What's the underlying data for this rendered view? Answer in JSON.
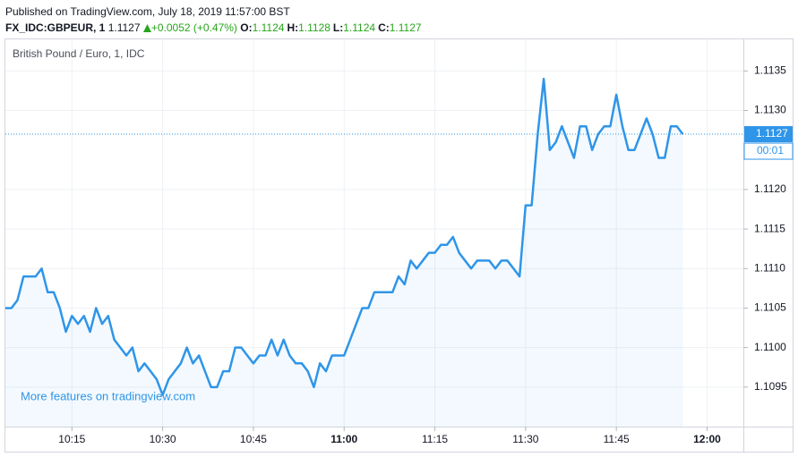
{
  "header": {
    "published": "Published on TradingView.com, July 18, 2019 11:57:00 BST",
    "symbol": "FX_IDC:GBPEUR, 1",
    "last": 1.1127,
    "change": "+0.0052 (+0.47%)",
    "ohlc": [
      {
        "label": "O:",
        "value": 1.1124
      },
      {
        "label": "H:",
        "value": 1.1128
      },
      {
        "label": "L:",
        "value": 1.1124
      },
      {
        "label": "C:",
        "value": 1.1127
      }
    ]
  },
  "chart_data": {
    "type": "line",
    "title": "British Pound / Euro, 1, IDC",
    "color": "#2f95e8",
    "watermark": "More features on tradingview.com",
    "countdown": "00:01",
    "grid": true,
    "x": [
      "10:04",
      "10:05",
      "10:06",
      "10:07",
      "10:08",
      "10:09",
      "10:10",
      "10:11",
      "10:12",
      "10:13",
      "10:14",
      "10:15",
      "10:16",
      "10:17",
      "10:18",
      "10:19",
      "10:20",
      "10:21",
      "10:22",
      "10:23",
      "10:24",
      "10:25",
      "10:26",
      "10:27",
      "10:28",
      "10:29",
      "10:30",
      "10:31",
      "10:32",
      "10:33",
      "10:34",
      "10:35",
      "10:36",
      "10:37",
      "10:38",
      "10:39",
      "10:40",
      "10:41",
      "10:42",
      "10:43",
      "10:44",
      "10:45",
      "10:46",
      "10:47",
      "10:48",
      "10:49",
      "10:50",
      "10:51",
      "10:52",
      "10:53",
      "10:54",
      "10:55",
      "10:56",
      "10:57",
      "10:58",
      "10:59",
      "11:00",
      "11:01",
      "11:02",
      "11:03",
      "11:04",
      "11:05",
      "11:06",
      "11:07",
      "11:08",
      "11:09",
      "11:10",
      "11:11",
      "11:12",
      "11:13",
      "11:14",
      "11:15",
      "11:16",
      "11:17",
      "11:18",
      "11:19",
      "11:20",
      "11:21",
      "11:22",
      "11:23",
      "11:24",
      "11:25",
      "11:26",
      "11:27",
      "11:28",
      "11:29",
      "11:30",
      "11:31",
      "11:32",
      "11:33",
      "11:34",
      "11:35",
      "11:36",
      "11:37",
      "11:38",
      "11:39",
      "11:40",
      "11:41",
      "11:42",
      "11:43",
      "11:44",
      "11:45",
      "11:46",
      "11:47",
      "11:48",
      "11:49",
      "11:50",
      "11:51",
      "11:52",
      "11:53",
      "11:54",
      "11:55",
      "11:56"
    ],
    "values": [
      1.1105,
      1.1105,
      1.1106,
      1.1109,
      1.1109,
      1.1109,
      1.111,
      1.1107,
      1.1107,
      1.1105,
      1.1102,
      1.1104,
      1.1103,
      1.1104,
      1.1102,
      1.1105,
      1.1103,
      1.1104,
      1.1101,
      1.11,
      1.1099,
      1.11,
      1.1097,
      1.1098,
      1.1097,
      1.1096,
      1.1094,
      1.1096,
      1.1097,
      1.1098,
      1.11,
      1.1098,
      1.1099,
      1.1097,
      1.1095,
      1.1095,
      1.1097,
      1.1097,
      1.11,
      1.11,
      1.1099,
      1.1098,
      1.1099,
      1.1099,
      1.1101,
      1.1099,
      1.1101,
      1.1099,
      1.1098,
      1.1098,
      1.1097,
      1.1095,
      1.1098,
      1.1097,
      1.1099,
      1.1099,
      1.1099,
      1.1101,
      1.1103,
      1.1105,
      1.1105,
      1.1107,
      1.1107,
      1.1107,
      1.1107,
      1.1109,
      1.1108,
      1.1111,
      1.111,
      1.1111,
      1.1112,
      1.1112,
      1.1113,
      1.1113,
      1.1114,
      1.1112,
      1.1111,
      1.111,
      1.1111,
      1.1111,
      1.1111,
      1.111,
      1.1111,
      1.1111,
      1.111,
      1.1109,
      1.1118,
      1.1118,
      1.1127,
      1.1134,
      1.1125,
      1.1126,
      1.1128,
      1.1126,
      1.1124,
      1.1128,
      1.1128,
      1.1125,
      1.1127,
      1.1128,
      1.1128,
      1.1132,
      1.1128,
      1.1125,
      1.1125,
      1.1127,
      1.1129,
      1.1127,
      1.1124,
      1.1124,
      1.1128,
      1.1128,
      1.1127
    ],
    "xlim": [
      "10:04",
      "12:06"
    ],
    "xticks": [
      "10:15",
      "10:30",
      "10:45",
      "11:00",
      "11:15",
      "11:30",
      "11:45",
      "12:00"
    ],
    "ylim": [
      1.109,
      1.1139
    ],
    "yticks": [
      1.1095,
      {
        "value": 1.11,
        "label": "1.1100"
      },
      1.1105,
      {
        "value": 1.111,
        "label": "1.1110"
      },
      1.1115,
      {
        "value": 1.112,
        "label": "1.1120"
      },
      {
        "value": 1.113,
        "label": "1.1130"
      },
      1.1135
    ]
  }
}
